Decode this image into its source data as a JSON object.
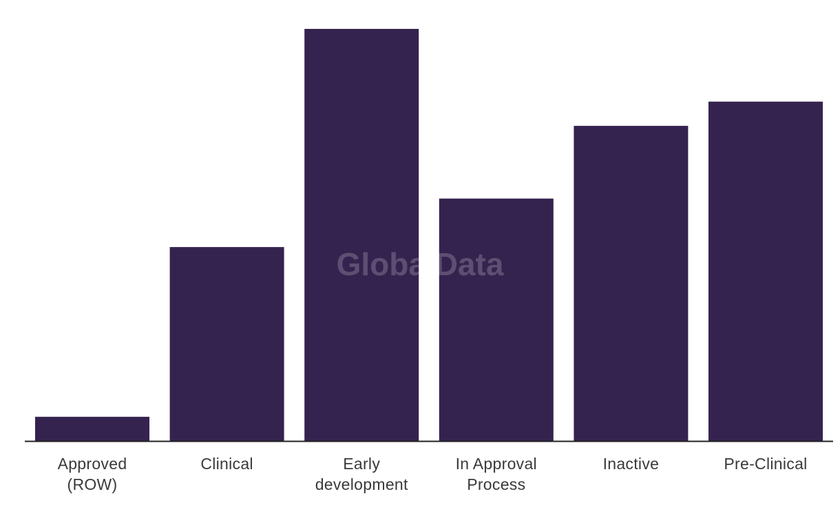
{
  "chart_data": {
    "type": "bar",
    "categories": [
      [
        "Approved",
        "(ROW)"
      ],
      [
        "Clinical"
      ],
      [
        "Early",
        "development"
      ],
      [
        "In Approval",
        "Process"
      ],
      [
        "Inactive"
      ],
      [
        "Pre-Clinical"
      ]
    ],
    "values": [
      1,
      8,
      17,
      10,
      13,
      14
    ],
    "ylim": [
      0,
      17
    ],
    "grid": false,
    "legend": "none",
    "bar_color": "#35234f",
    "axis_color": "#222222",
    "watermark": "GlobalData",
    "title": "",
    "xlabel": "",
    "ylabel": ""
  }
}
